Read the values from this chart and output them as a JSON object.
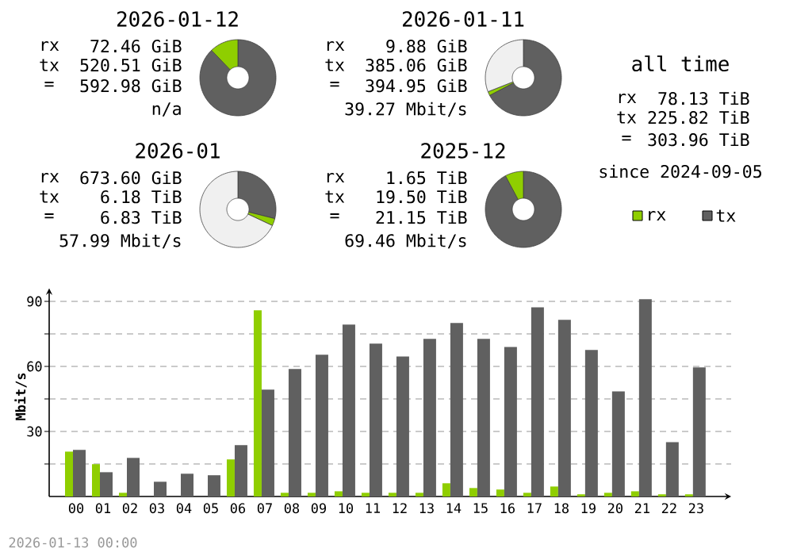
{
  "chart_data": [
    {
      "type": "donut",
      "title": "2026-01-12",
      "categories": [
        null,
        null
      ],
      "values": [
        87.8,
        12.2
      ],
      "colors": [
        "#606060",
        "#8fce00"
      ],
      "annotations": [
        "rx",
        "72.46 GiB",
        "tx",
        "520.51 GiB",
        "=",
        "592.98 GiB",
        "n/a"
      ]
    },
    {
      "type": "donut",
      "title": "2026-01-11",
      "categories": [
        null,
        null,
        null
      ],
      "values": [
        67.3,
        1.7,
        31
      ],
      "colors": [
        "#606060",
        "#8fce00",
        "#f0f0f0"
      ],
      "annotations": [
        "rx",
        "9.88 GiB",
        "tx",
        "385.06 GiB",
        "=",
        "394.95 GiB",
        "39.27 Mbit/s"
      ]
    },
    {
      "type": "donut",
      "title": "2026-01",
      "categories": [
        null,
        null,
        null
      ],
      "values": [
        28.9,
        3.1,
        68
      ],
      "colors": [
        "#606060",
        "#8fce00",
        "#f0f0f0"
      ],
      "annotations": [
        "rx",
        "673.60 GiB",
        "tx",
        "6.18 TiB",
        "=",
        "6.83 TiB",
        "57.99 Mbit/s"
      ]
    },
    {
      "type": "donut",
      "title": "2025-12",
      "categories": [
        null,
        null
      ],
      "values": [
        92.2,
        7.8
      ],
      "colors": [
        "#606060",
        "#8fce00"
      ],
      "annotations": [
        "rx",
        "1.65 TiB",
        "tx",
        "19.50 TiB",
        "=",
        "21.15 TiB",
        "69.46 Mbit/s"
      ]
    },
    {
      "type": "other",
      "title": "all time",
      "annotations": [
        "rx",
        "78.13 TiB",
        "tx",
        "225.82 TiB",
        "=",
        "303.96 TiB",
        "since 2024-09-05"
      ]
    },
    {
      "type": "bar",
      "ylabel": "Mbit/s",
      "legend": "top right",
      "grid": "y",
      "categories": [
        "00",
        "01",
        "02",
        "03",
        "04",
        "05",
        "06",
        "07",
        "08",
        "09",
        "10",
        "11",
        "12",
        "13",
        "14",
        "15",
        "16",
        "17",
        "18",
        "19",
        "20",
        "21",
        "22",
        "23"
      ],
      "ylim": [
        0,
        96
      ],
      "yticks": [
        {
          "value": 15,
          "label": null
        },
        30,
        {
          "value": 45,
          "label": null
        },
        60,
        {
          "value": 75,
          "label": null
        },
        90
      ],
      "series": [
        {
          "name": "rx",
          "color": "#8fce00",
          "values": [
            20.7,
            14.9,
            1.7,
            0,
            0,
            0,
            17.1,
            85.9,
            1.7,
            1.7,
            2.4,
            1.7,
            1.7,
            1.7,
            6.1,
            3.9,
            3.2,
            1.7,
            4.6,
            1,
            1.7,
            2.4,
            1,
            1
          ]
        },
        {
          "name": "tx",
          "color": "#606060",
          "values": [
            21.5,
            11.2,
            17.8,
            6.8,
            10.5,
            9.8,
            23.7,
            49.3,
            58.8,
            65.4,
            79.3,
            70.5,
            64.6,
            72.7,
            80,
            72.7,
            69,
            87.3,
            81.5,
            67.6,
            48.5,
            91,
            25.1,
            59.5
          ]
        }
      ],
      "annotations": [
        "2026-01-13 00:00"
      ]
    }
  ]
}
